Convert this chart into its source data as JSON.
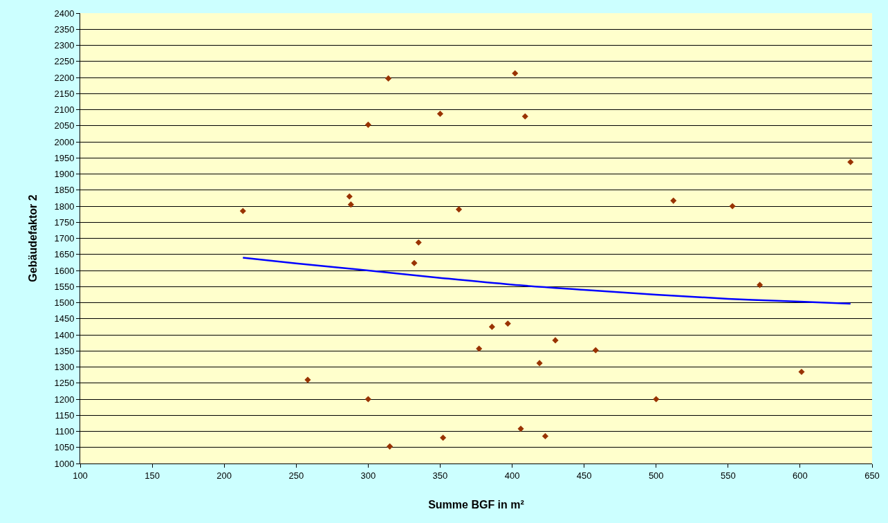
{
  "chart_data": {
    "type": "scatter",
    "xlabel": "Summe BGF in m²",
    "ylabel": "Gebäudefaktor 2",
    "xlim": [
      100,
      650
    ],
    "ylim": [
      1000,
      2400
    ],
    "xticks": [
      100,
      150,
      200,
      250,
      300,
      350,
      400,
      450,
      500,
      550,
      600,
      650
    ],
    "yticks": [
      1000,
      1050,
      1100,
      1150,
      1200,
      1250,
      1300,
      1350,
      1400,
      1450,
      1500,
      1550,
      1600,
      1650,
      1700,
      1750,
      1800,
      1850,
      1900,
      1950,
      2000,
      2050,
      2100,
      2150,
      2200,
      2250,
      2300,
      2350,
      2400
    ],
    "grid": "y",
    "marker": "diamond",
    "series": [
      {
        "color": "#993300",
        "x": [
          213,
          258,
          287,
          288,
          300,
          300,
          314,
          315,
          332,
          335,
          350,
          352,
          363,
          377,
          386,
          397,
          402,
          406,
          409,
          419,
          423,
          430,
          458,
          500,
          512,
          553,
          572,
          601,
          635
        ],
        "values": [
          1785,
          1260,
          1830,
          1805,
          2053,
          1200,
          2197,
          1053,
          1623,
          1687,
          2087,
          1080,
          1790,
          1357,
          1425,
          1435,
          2213,
          1108,
          2079,
          1312,
          1085,
          1383,
          1352,
          1200,
          1817,
          1800,
          1555,
          1285,
          1937
        ]
      },
      {
        "type": "line",
        "color": "#0000ff",
        "marker": "none",
        "line_style": "solid",
        "x": [
          213,
          250,
          300,
          350,
          400,
          450,
          500,
          550,
          600,
          635
        ],
        "values": [
          1640,
          1622,
          1600,
          1577,
          1556,
          1540,
          1525,
          1512,
          1503,
          1497
        ]
      }
    ]
  }
}
